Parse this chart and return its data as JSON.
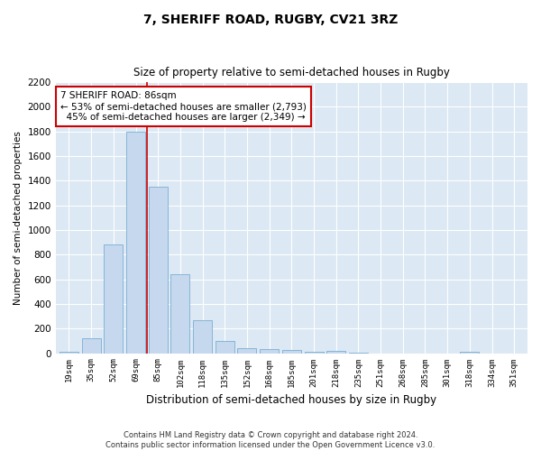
{
  "title": "7, SHERIFF ROAD, RUGBY, CV21 3RZ",
  "subtitle": "Size of property relative to semi-detached houses in Rugby",
  "xlabel": "Distribution of semi-detached houses by size in Rugby",
  "ylabel": "Number of semi-detached properties",
  "categories": [
    "19sqm",
    "35sqm",
    "52sqm",
    "69sqm",
    "85sqm",
    "102sqm",
    "118sqm",
    "135sqm",
    "152sqm",
    "168sqm",
    "185sqm",
    "201sqm",
    "218sqm",
    "235sqm",
    "251sqm",
    "268sqm",
    "285sqm",
    "301sqm",
    "318sqm",
    "334sqm",
    "351sqm"
  ],
  "values": [
    10,
    120,
    880,
    1800,
    1350,
    640,
    270,
    100,
    40,
    30,
    25,
    10,
    20,
    5,
    0,
    0,
    0,
    0,
    10,
    0,
    0
  ],
  "bar_color": "#c5d8ed",
  "bar_edge_color": "#7aafd4",
  "highlight_bin_index": 4,
  "annotation_text": "7 SHERIFF ROAD: 86sqm\n← 53% of semi-detached houses are smaller (2,793)\n  45% of semi-detached houses are larger (2,349) →",
  "annotation_box_color": "#ffffff",
  "annotation_box_edge": "#cc0000",
  "vline_color": "#cc0000",
  "plot_background": "#dce8f3",
  "fig_background": "#ffffff",
  "grid_color": "#ffffff",
  "ylim": [
    0,
    2200
  ],
  "yticks": [
    0,
    200,
    400,
    600,
    800,
    1000,
    1200,
    1400,
    1600,
    1800,
    2000,
    2200
  ],
  "footer_line1": "Contains HM Land Registry data © Crown copyright and database right 2024.",
  "footer_line2": "Contains public sector information licensed under the Open Government Licence v3.0."
}
